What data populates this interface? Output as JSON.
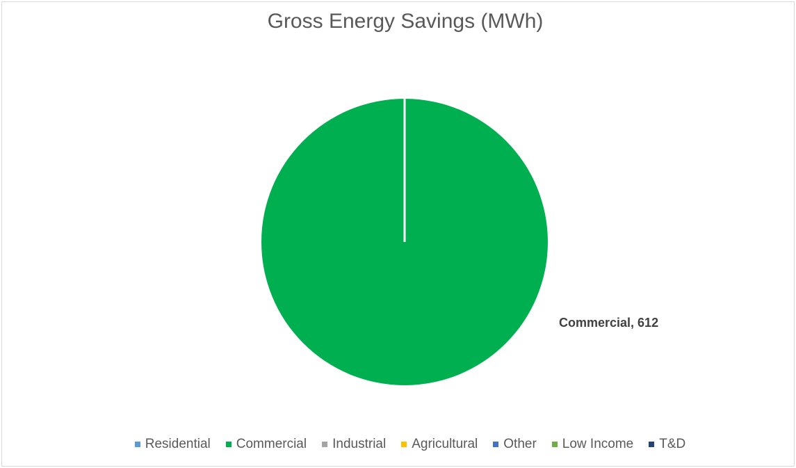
{
  "chart_data": {
    "type": "pie",
    "title": "Gross Energy Savings (MWh)",
    "categories": [
      "Residential",
      "Commercial",
      "Industrial",
      "Agricultural",
      "Other",
      "Low Income",
      "T&D"
    ],
    "values": [
      0,
      612,
      0,
      0,
      0,
      0,
      0
    ],
    "colors": [
      "#5b9bd5",
      "#00b050",
      "#a5a5a5",
      "#ffc000",
      "#4472c4",
      "#70ad47",
      "#264478"
    ],
    "data_labels": [
      {
        "category": "Commercial",
        "value": 612,
        "text": "Commercial, 612"
      }
    ],
    "legend_position": "bottom"
  }
}
